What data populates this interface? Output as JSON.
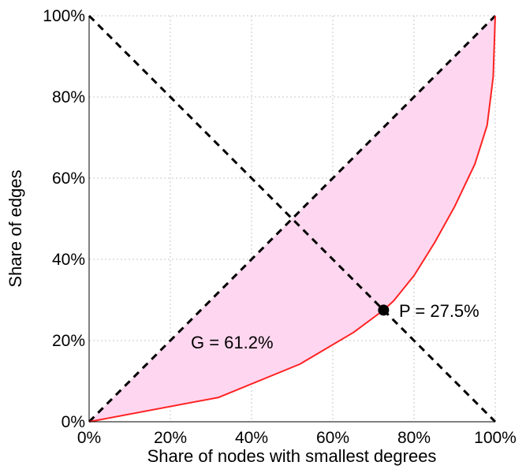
{
  "chart_data": {
    "type": "line",
    "title": "",
    "xlabel": "Share of nodes with smallest degrees",
    "ylabel": "Share of edges",
    "xlim": [
      0,
      100
    ],
    "ylim": [
      0,
      100
    ],
    "grid": true,
    "x_tick_labels": [
      "0%",
      "20%",
      "40%",
      "60%",
      "80%",
      "100%"
    ],
    "y_tick_labels": [
      "0%",
      "20%",
      "40%",
      "60%",
      "80%",
      "100%"
    ],
    "series": [
      {
        "name": "",
        "role": "lorenz_curve",
        "color": "#ff2222",
        "fill_color": "#ffd6ef",
        "x": [
          0,
          31.9,
          51.9,
          65.1,
          72.5,
          75.0,
          80.0,
          85.0,
          90.0,
          95.0,
          98.0,
          99.5,
          100
        ],
        "y": [
          0,
          6.0,
          14.2,
          22.0,
          27.5,
          29.8,
          36.0,
          44.0,
          53.0,
          63.5,
          73.0,
          85.0,
          100
        ]
      },
      {
        "name": "",
        "role": "line_of_equality",
        "style": "dashed",
        "color": "#000000",
        "x": [
          0,
          100
        ],
        "y": [
          0,
          100
        ]
      },
      {
        "name": "",
        "role": "anti_diagonal",
        "style": "dashed",
        "color": "#000000",
        "x": [
          0,
          100
        ],
        "y": [
          100,
          0
        ]
      }
    ],
    "point": {
      "x": 72.5,
      "y": 27.5,
      "color": "#000000"
    },
    "annotations": [
      {
        "text": "G = 61.2%"
      },
      {
        "text": "P = 27.5%"
      }
    ]
  }
}
